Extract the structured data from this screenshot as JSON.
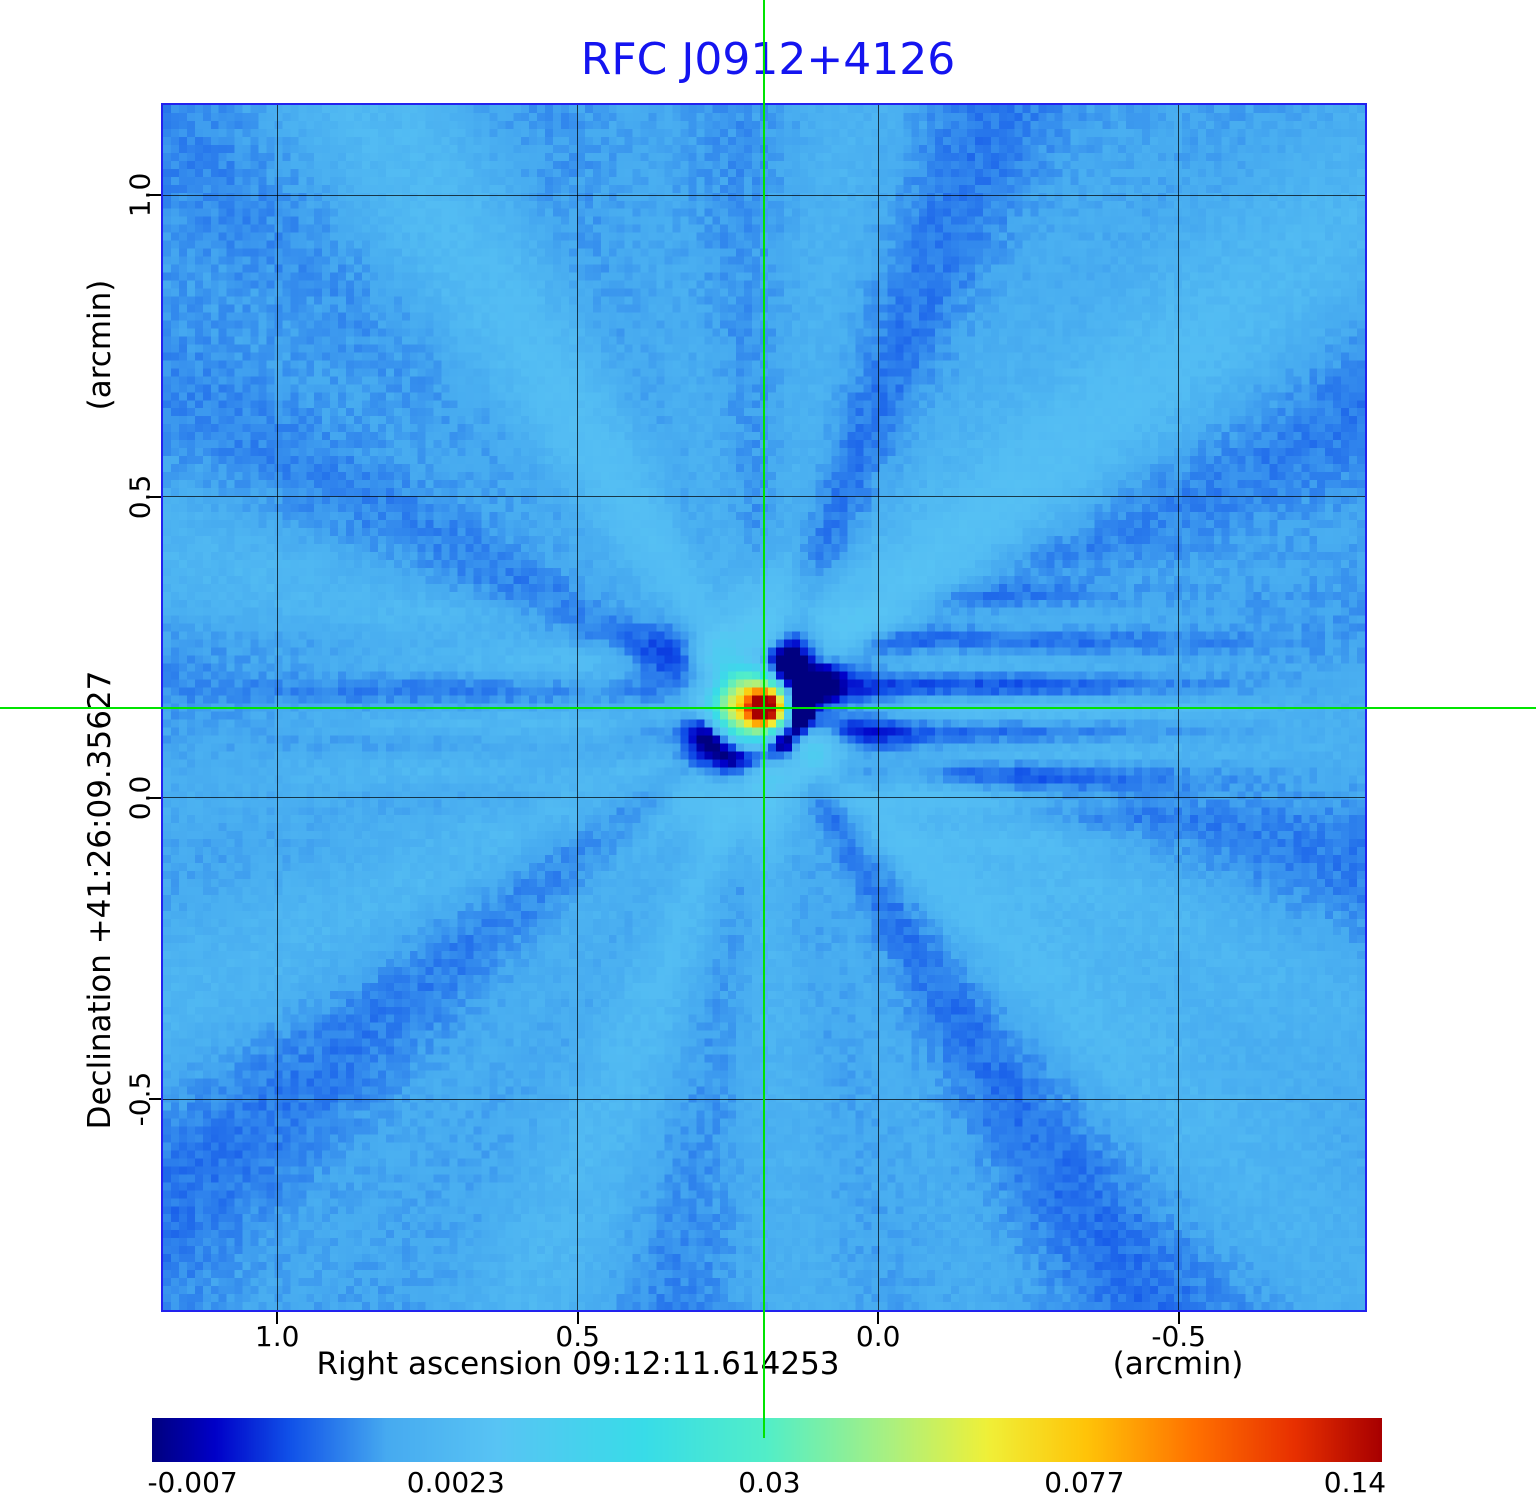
{
  "chart_data": {
    "type": "heatmap",
    "title": "RFC J0912+4126",
    "title_color": "#1414f0",
    "frame_color": "#2222ee",
    "grid_color": "rgba(0,0,0,0.7)",
    "grid": true,
    "xlabel": "Right ascension  09:12:11.614253",
    "xunit": "(arcmin)",
    "ylabel": "Declination  +41:26:09.35627",
    "yunit": "(arcmin)",
    "x_ticks": [
      1.0,
      0.5,
      0.0,
      -0.5
    ],
    "x_tick_labels": [
      "1.0",
      "0.5",
      "0.0",
      "-0.5"
    ],
    "y_ticks": [
      1.0,
      0.5,
      0.0,
      -0.5
    ],
    "y_tick_labels": [
      "1.0",
      "0.5",
      "0.0",
      "-0.5"
    ],
    "x_range_arcmin": [
      1.19,
      -0.81
    ],
    "y_range_arcmin": [
      1.15,
      -0.85
    ],
    "source_marker": {
      "x_arcmin": 0.19,
      "y_arcmin": 0.15,
      "peak_value": 0.14,
      "crosshair_color": "#00e400"
    },
    "colorbar": {
      "tick_labels": [
        "-0.007",
        "0.0023",
        "0.03",
        "0.077",
        "0.14"
      ],
      "tick_values": [
        -0.007,
        0.0023,
        0.03,
        0.077,
        0.14
      ],
      "scale": "nonlinear"
    },
    "colormap": [
      {
        "t": 0.0,
        "c": "#000080"
      },
      {
        "t": 0.05,
        "c": "#0000c8"
      },
      {
        "t": 0.11,
        "c": "#1050e8"
      },
      {
        "t": 0.19,
        "c": "#46aaf0"
      },
      {
        "t": 0.28,
        "c": "#58c4f4"
      },
      {
        "t": 0.4,
        "c": "#38dce8"
      },
      {
        "t": 0.5,
        "c": "#52eec8"
      },
      {
        "t": 0.6,
        "c": "#aaf080"
      },
      {
        "t": 0.68,
        "c": "#f0f038"
      },
      {
        "t": 0.76,
        "c": "#ffc408"
      },
      {
        "t": 0.85,
        "c": "#ff7000"
      },
      {
        "t": 0.93,
        "c": "#e83000"
      },
      {
        "t": 1.0,
        "c": "#a80000"
      }
    ]
  }
}
